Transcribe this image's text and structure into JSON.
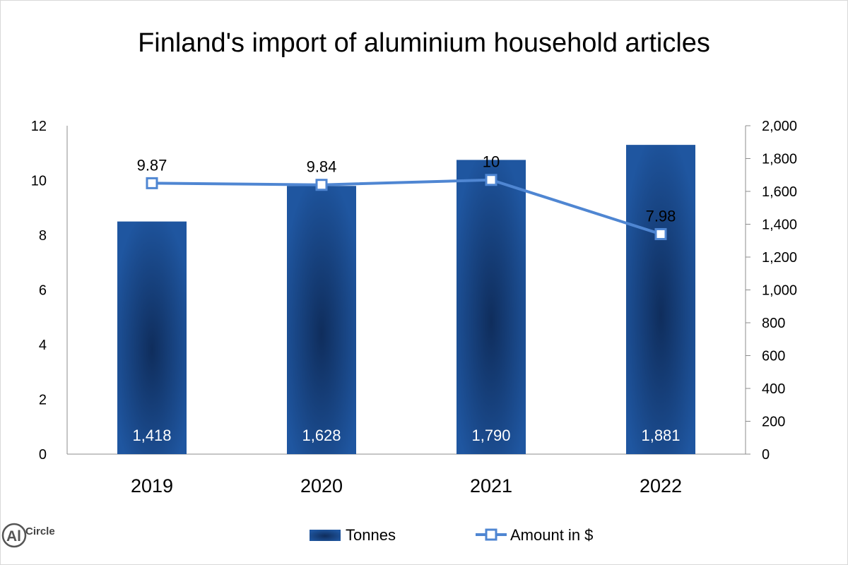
{
  "chart_data": {
    "type": "bar",
    "title": "Finland's import of aluminium household articles",
    "categories": [
      "2019",
      "2020",
      "2021",
      "2022"
    ],
    "series": [
      {
        "name": "Tonnes",
        "type": "bar",
        "axis": "left",
        "values": [
          8.5,
          9.8,
          10.75,
          11.3
        ],
        "data_labels": [
          "1,418",
          "1,628",
          "1,790",
          "1,881"
        ]
      },
      {
        "name": "Amount in $",
        "type": "line",
        "axis": "right",
        "values": [
          1650,
          1640,
          1670,
          1340
        ],
        "data_labels": [
          "9.87",
          "9.84",
          "10",
          "7.98"
        ]
      }
    ],
    "left_axis": {
      "min": 0,
      "max": 12,
      "ticks": [
        "0",
        "2",
        "4",
        "6",
        "8",
        "10",
        "12"
      ]
    },
    "right_axis": {
      "min": 0,
      "max": 2000,
      "ticks": [
        "0",
        "200",
        "400",
        "600",
        "800",
        "1,000",
        "1,200",
        "1,400",
        "1,600",
        "1,800",
        "2,000"
      ]
    },
    "grid": false,
    "legend": "bottom",
    "colors": {
      "bar": "#1f56a0",
      "bar_dark": "#0f2d5c",
      "line": "#4f86d2"
    }
  },
  "logo": {
    "name": "AlCircle",
    "text": "Circle",
    "mark": "Al"
  }
}
